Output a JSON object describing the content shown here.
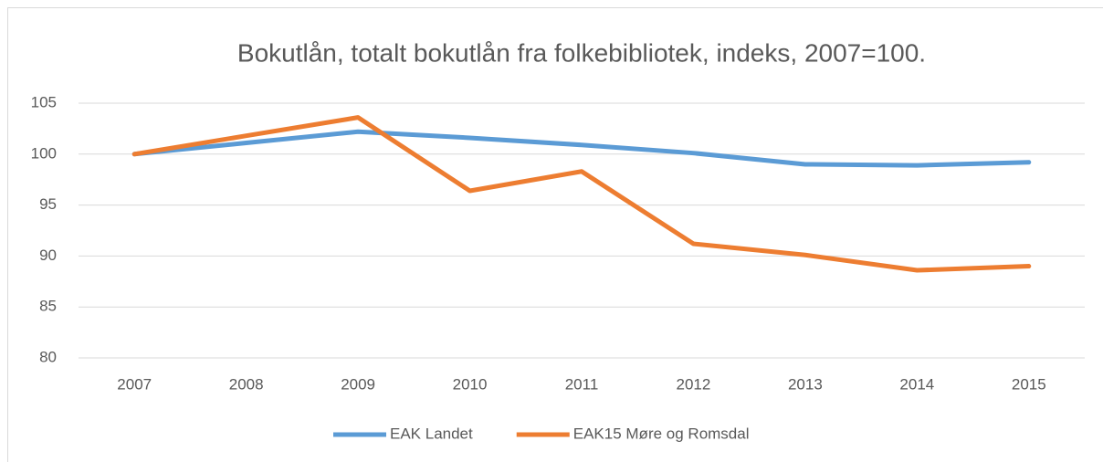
{
  "chart_data": {
    "type": "line",
    "title": "Bokutlån, totalt bokutlån fra folkebibliotek, indeks, 2007=100.",
    "categories": [
      "2007",
      "2008",
      "2009",
      "2010",
      "2011",
      "2012",
      "2013",
      "2014",
      "2015"
    ],
    "series": [
      {
        "name": "EAK Landet",
        "color": "#5b9bd5",
        "values": [
          100,
          101.1,
          102.2,
          101.6,
          100.9,
          100.1,
          99.0,
          98.9,
          99.2
        ]
      },
      {
        "name": "EAK15 Møre og Romsdal",
        "color": "#ed7d31",
        "values": [
          100,
          101.8,
          103.6,
          96.4,
          98.3,
          91.2,
          90.1,
          88.6,
          89.0
        ]
      }
    ],
    "ylim": [
      80,
      105
    ],
    "yticks": [
      80,
      85,
      90,
      95,
      100,
      105
    ],
    "grid": true,
    "legend": "bottom"
  }
}
